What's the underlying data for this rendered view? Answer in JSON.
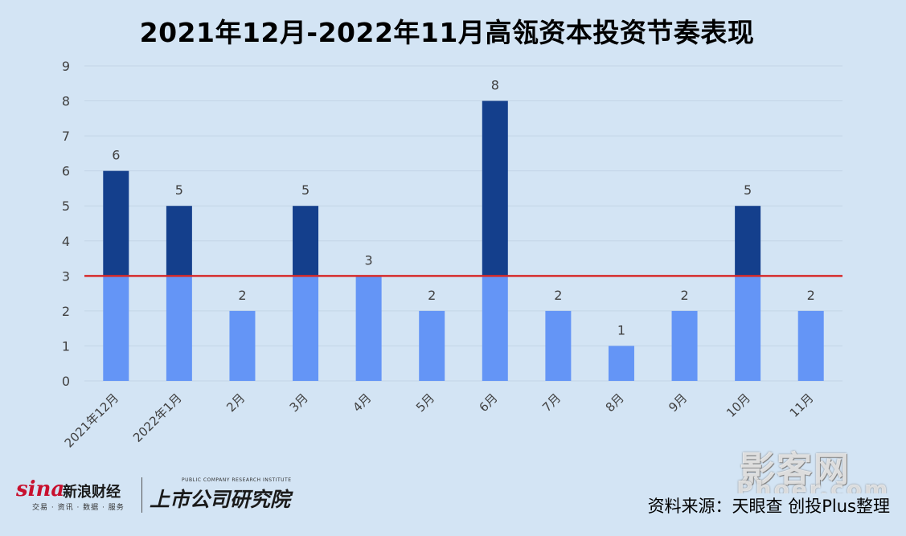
{
  "title": "2021年12月-2022年11月高瓴资本投资节奏表现",
  "source": "资料来源：天眼查 创投Plus整理",
  "logos": {
    "sina": {
      "word": "sina",
      "name": "新浪财经",
      "sub": "交易 · 资讯 · 数据 · 服务"
    },
    "institute": {
      "en": "PUBLIC COMPANY RESEARCH INSTITUTE",
      "cn": "上市公司研究院"
    },
    "watermark": {
      "cn": "影客网",
      "en": "Phoer.com"
    }
  },
  "colors": {
    "background": "#d3e4f4",
    "bar_light": "#6495f6",
    "bar_dark": "#143f8c",
    "reference_line": "#d62a2a",
    "grid": "#c3d5e6"
  },
  "chart_data": {
    "type": "bar",
    "title": "2021年12月-2022年11月高瓴资本投资节奏表现",
    "categories": [
      "2021年12月",
      "2022年1月",
      "2月",
      "3月",
      "4月",
      "5月",
      "6月",
      "7月",
      "8月",
      "9月",
      "10月",
      "11月"
    ],
    "values": [
      6,
      5,
      2,
      5,
      3,
      2,
      8,
      2,
      1,
      2,
      5,
      2
    ],
    "reference_line": 3,
    "ylim": [
      0,
      9
    ],
    "yticks": [
      0,
      1,
      2,
      3,
      4,
      5,
      6,
      7,
      8,
      9
    ],
    "grid": true,
    "legend": "none",
    "data_labels": true
  }
}
